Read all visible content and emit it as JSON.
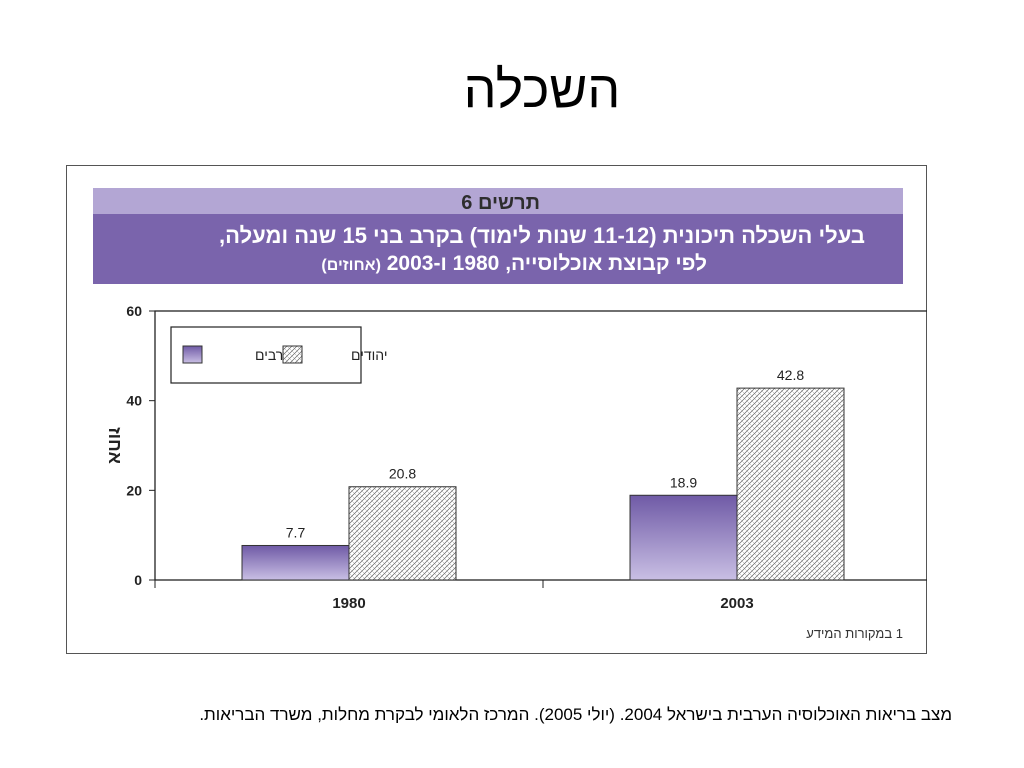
{
  "slide": {
    "title": "השכלה",
    "source": "מצב בריאות האוכלוסיה הערבית בישראל 2004. (יולי 2005). המרכז הלאומי לבקרת מחלות, משרד הבריאות."
  },
  "figure": {
    "number": "תרשים 6",
    "title_line1": "בעלי השכלה תיכונית (11-12 שנות לימוד) בקרב בני 15 שנה ומעלה,",
    "title_line2": "לפי קבוצת אוכלוסייה, 1980 ו-2003",
    "title_unit": "(אחוזים)",
    "footnote": "1 במקורות המידע"
  },
  "colors": {
    "header_dark": "#7a64ac",
    "header_light": "#b3a6d4",
    "arabs_bar_top": "#6f5aa6",
    "arabs_bar_bottom": "#c9bfe4",
    "jews_hatch": "#666666"
  },
  "chart_data": {
    "type": "bar",
    "categories": [
      "1980",
      "2003"
    ],
    "series": [
      {
        "name": "ערבים",
        "values": [
          7.7,
          18.9
        ],
        "labels": [
          "7.7",
          "18.9"
        ],
        "fill": "purple-gradient"
      },
      {
        "name": "יהודים",
        "values": [
          20.8,
          42.8
        ],
        "labels": [
          "20.8",
          "42.8"
        ],
        "fill": "hatched"
      }
    ],
    "ylabel": "אחוז",
    "ylim": [
      0,
      60
    ],
    "yticks": [
      0,
      20,
      40,
      60
    ],
    "grid": false,
    "legend_position": "top-left"
  }
}
